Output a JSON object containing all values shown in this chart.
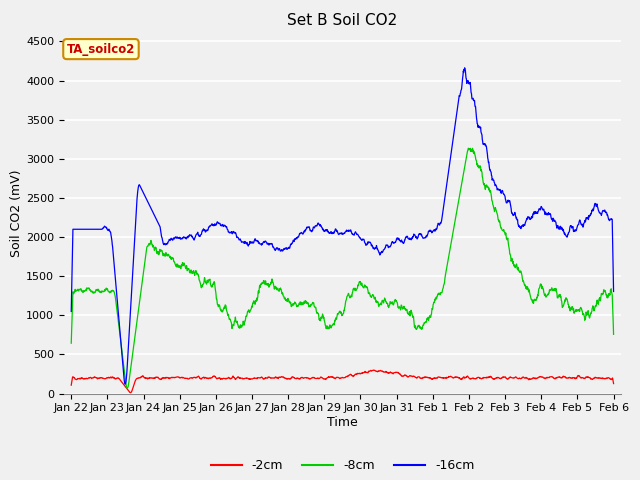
{
  "title": "Set B Soil CO2",
  "xlabel": "Time",
  "ylabel": "Soil CO2 (mV)",
  "legend_label": "TA_soilco2",
  "series_labels": [
    "-2cm",
    "-8cm",
    "-16cm"
  ],
  "series_colors": [
    "#ff0000",
    "#00cc00",
    "#0000ff"
  ],
  "ylim": [
    0,
    4600
  ],
  "background_color": "#f0f0f0",
  "plot_bg_color": "#f0f0f0",
  "grid_color": "#ffffff",
  "tick_labels": [
    "Jan 22",
    "Jan 23",
    "Jan 24",
    "Jan 25",
    "Jan 26",
    "Jan 27",
    "Jan 28",
    "Jan 29",
    "Jan 30",
    "Jan 31",
    "Feb 1",
    "Feb 2",
    "Feb 3",
    "Feb 4",
    "Feb 5",
    "Feb 6"
  ],
  "title_fontsize": 11,
  "axis_label_fontsize": 9,
  "tick_fontsize": 8,
  "legend_box_color": "#ffffcc",
  "legend_box_edge": "#cc8800",
  "legend_text_color": "#cc0000",
  "yticks": [
    0,
    500,
    1000,
    1500,
    2000,
    2500,
    3000,
    3500,
    4000,
    4500
  ]
}
